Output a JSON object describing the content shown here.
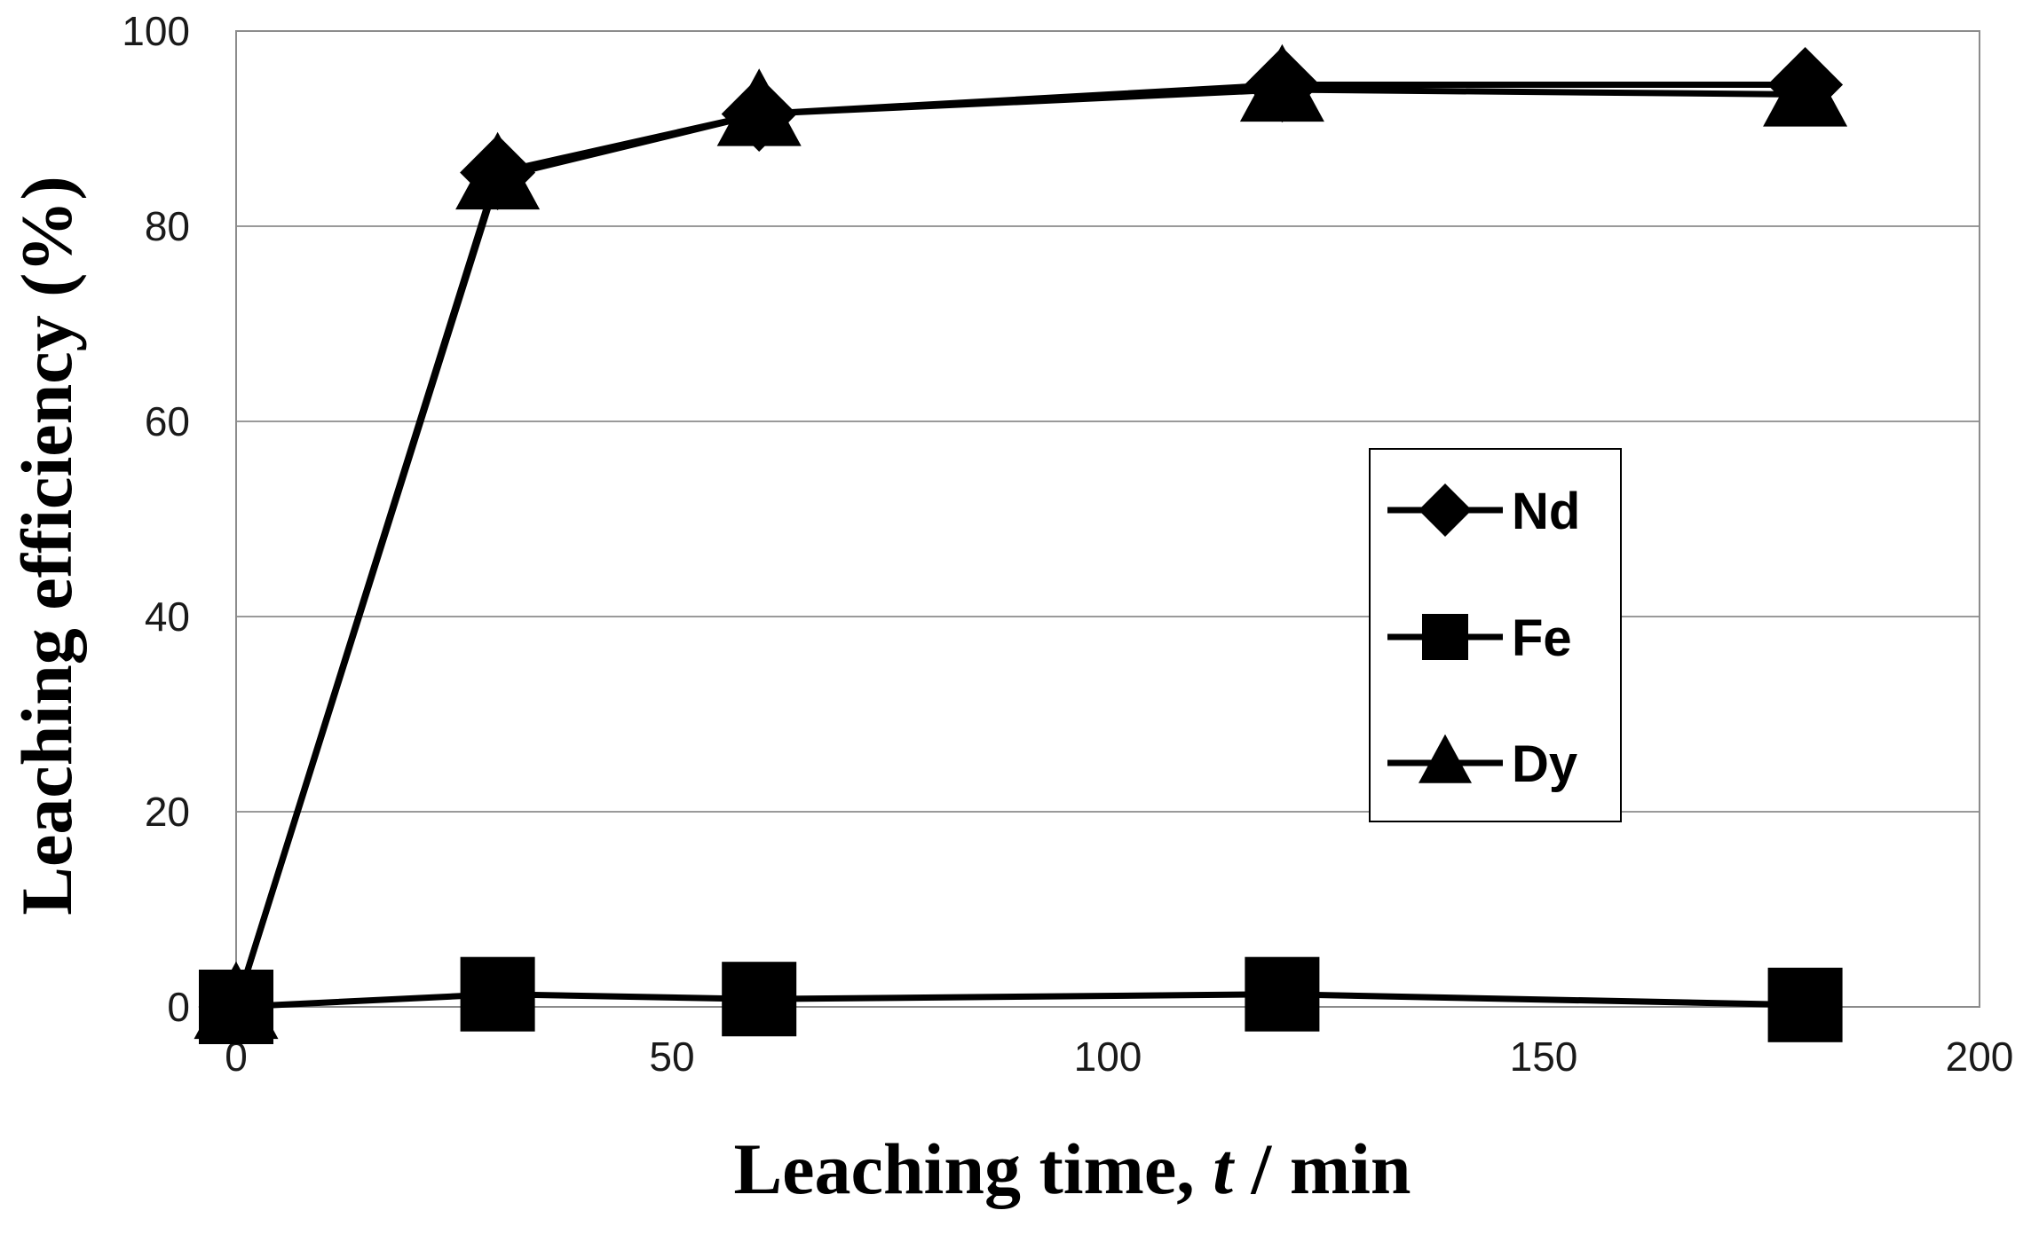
{
  "chart_data": {
    "type": "line",
    "xlabel_prefix": "Leaching time, ",
    "xlabel_var": "t",
    "xlabel_suffix": " / min",
    "ylabel": "Leaching efficiency (%)",
    "xlim": [
      0,
      200
    ],
    "ylim": [
      0,
      100
    ],
    "xticks": [
      "0",
      "50",
      "100",
      "150",
      "200"
    ],
    "yticks": [
      "0",
      "20",
      "40",
      "60",
      "80",
      "100"
    ],
    "grid": "horizontal",
    "legend_position": "center-right",
    "series": [
      {
        "name": "Nd",
        "marker": "diamond",
        "color": "#000000",
        "x": [
          0,
          30,
          60,
          120,
          180
        ],
        "y": [
          0,
          85.5,
          91.5,
          94.5,
          94.5
        ]
      },
      {
        "name": "Fe",
        "marker": "square",
        "color": "#000000",
        "x": [
          0,
          30,
          60,
          120,
          180
        ],
        "y": [
          0,
          1.3,
          0.8,
          1.3,
          0.2
        ]
      },
      {
        "name": "Dy",
        "marker": "triangle",
        "color": "#000000",
        "x": [
          0,
          30,
          60,
          120,
          180
        ],
        "y": [
          0,
          85,
          91.5,
          94,
          93.5
        ]
      }
    ]
  }
}
